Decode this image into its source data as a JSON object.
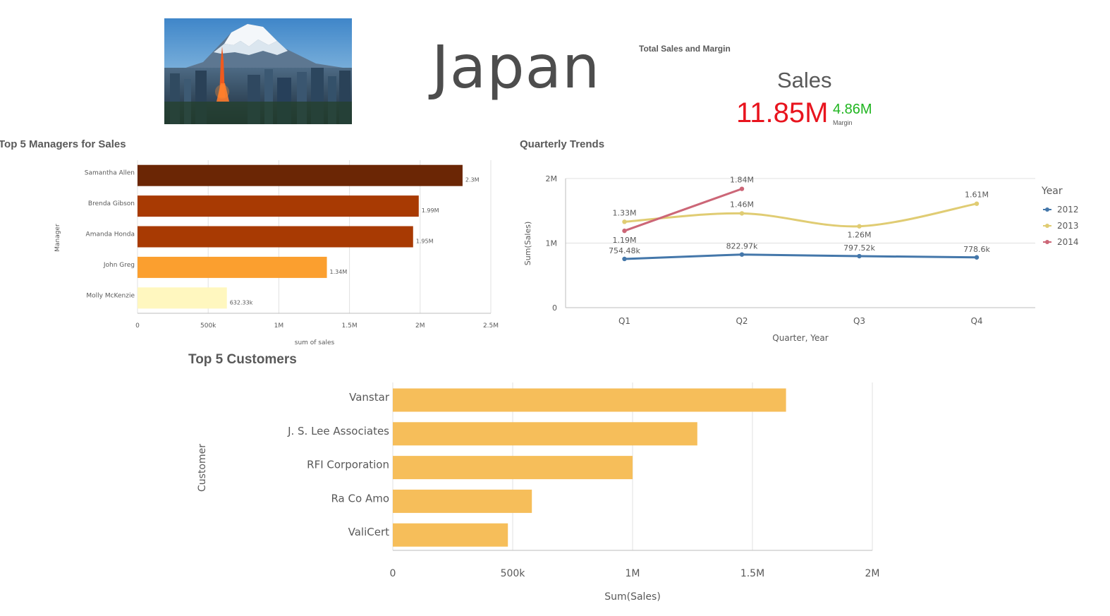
{
  "country": "Japan",
  "kpi": {
    "title": "Total Sales and Margin",
    "sales_label": "Sales",
    "sales_value": "11.85M",
    "margin_value": "4.86M",
    "margin_label": "Margin",
    "colors": {
      "sales": "#e8141e",
      "margin": "#1fb51f"
    }
  },
  "hero_image": {
    "icon": "mount-fuji-tokyo-skyline-photo"
  },
  "chart_data": [
    {
      "type": "bar",
      "orientation": "horizontal",
      "title": "Top 5 Managers for Sales",
      "xlabel": "sum of sales",
      "ylabel": "Manager",
      "categories": [
        "Samantha Allen",
        "Brenda Gibson",
        "Amanda Honda",
        "John Greg",
        "Molly McKenzie"
      ],
      "values": [
        2300000,
        1990000,
        1950000,
        1340000,
        632330
      ],
      "labels": [
        "2.3M",
        "1.99M",
        "1.95M",
        "1.34M",
        "632.33k"
      ],
      "colors": [
        "#6b2605",
        "#a83a03",
        "#a83a03",
        "#fb9f2f",
        "#fff7bf"
      ],
      "xlim": [
        0,
        2500000
      ],
      "xticks": [
        0,
        500000,
        1000000,
        1500000,
        2000000,
        2500000
      ],
      "xtick_labels": [
        "0",
        "500k",
        "1M",
        "1.5M",
        "2M",
        "2.5M"
      ],
      "grid": true
    },
    {
      "type": "line",
      "title": "Quarterly Trends",
      "xlabel": "Quarter, Year",
      "ylabel": "Sum(Sales)",
      "categories": [
        "Q1",
        "Q2",
        "Q3",
        "Q4"
      ],
      "ylim": [
        0,
        2000000
      ],
      "yticks": [
        0,
        1000000,
        2000000
      ],
      "ytick_labels": [
        "0",
        "1M",
        "2M"
      ],
      "legend_title": "Year",
      "legend_position": "right",
      "series": [
        {
          "name": "2012",
          "color": "#4477aa",
          "values": [
            754480,
            822970,
            797520,
            778600
          ],
          "labels": [
            "754.48k",
            "822.97k",
            "797.52k",
            "778.6k"
          ]
        },
        {
          "name": "2013",
          "color": "#e0cc73",
          "values": [
            1330000,
            1460000,
            1260000,
            1610000
          ],
          "labels": [
            "1.33M",
            "1.46M",
            "1.26M",
            "1.61M"
          ]
        },
        {
          "name": "2014",
          "color": "#cc6677",
          "values": [
            1190000,
            1840000,
            null,
            null
          ],
          "labels": [
            "1.19M",
            "1.84M",
            null,
            null
          ]
        }
      ],
      "grid": true
    },
    {
      "type": "bar",
      "orientation": "horizontal",
      "title": "Top 5 Customers",
      "xlabel": "Sum(Sales)",
      "ylabel": "Customer",
      "categories": [
        "Vanstar",
        "J. S. Lee Associates",
        "RFI Corporation",
        "Ra Co Amo",
        "ValiCert"
      ],
      "values": [
        1640000,
        1270000,
        1000000,
        580000,
        480000
      ],
      "color": "#f6be5a",
      "xlim": [
        0,
        2000000
      ],
      "xticks": [
        0,
        500000,
        1000000,
        1500000,
        2000000
      ],
      "xtick_labels": [
        "0",
        "500k",
        "1M",
        "1.5M",
        "2M"
      ],
      "grid": true
    }
  ]
}
